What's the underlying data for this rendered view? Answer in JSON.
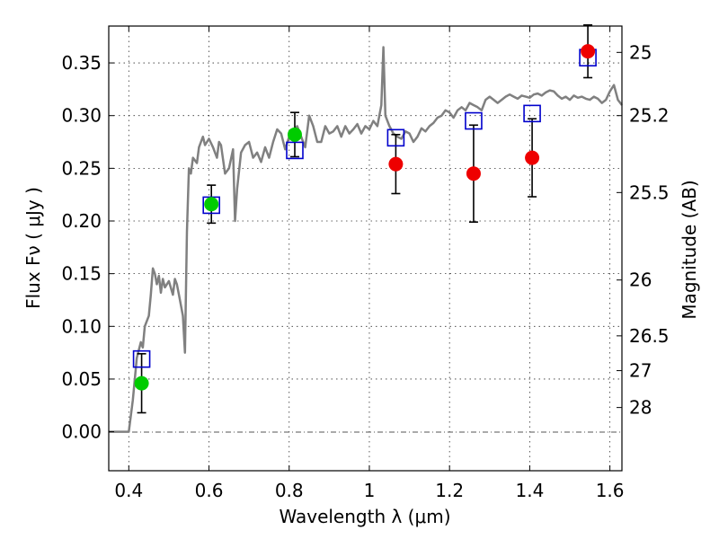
{
  "chart_data": {
    "type": "scatter",
    "xlabel": "Wavelength  λ (μm)",
    "ylabel": "Flux  Fν  ( μJy )",
    "y2label": "Magnitude (AB)",
    "xlim": [
      0.35,
      1.63
    ],
    "ylim": [
      -0.037,
      0.385
    ],
    "grid": true,
    "x_ticks": [
      0.4,
      0.6,
      0.8,
      1.0,
      1.2,
      1.4,
      1.6
    ],
    "x_tick_labels": [
      "0.4",
      "0.6",
      "0.8",
      "1",
      "1.2",
      "1.4",
      "1.6"
    ],
    "y_ticks": [
      0.0,
      0.05,
      0.1,
      0.15,
      0.2,
      0.25,
      0.3,
      0.35
    ],
    "y_tick_labels": [
      "0.00",
      "0.05",
      "0.10",
      "0.15",
      "0.20",
      "0.25",
      "0.30",
      "0.35"
    ],
    "mag_ticks": [
      {
        "label": "25",
        "flux": 0.36
      },
      {
        "label": "25.2",
        "flux": 0.3
      },
      {
        "label": "25.5",
        "flux": 0.227
      },
      {
        "label": "26",
        "flux": 0.144
      },
      {
        "label": "26.5",
        "flux": 0.091
      },
      {
        "label": "27",
        "flux": 0.058
      },
      {
        "label": "28",
        "flux": 0.023
      }
    ],
    "colors": {
      "sed": "#808080",
      "model": "#0000cc",
      "green": "#00cc00",
      "red": "#ee0000",
      "errorbar": "#000000",
      "zeroline": "#555555"
    },
    "series": [
      {
        "marker": "line",
        "points": [
          [
            0.35,
            0.0
          ],
          [
            0.4,
            0.0
          ],
          [
            0.41,
            0.03
          ],
          [
            0.42,
            0.07
          ],
          [
            0.43,
            0.085
          ],
          [
            0.435,
            0.08
          ],
          [
            0.44,
            0.1
          ],
          [
            0.45,
            0.11
          ],
          [
            0.455,
            0.13
          ],
          [
            0.46,
            0.155
          ],
          [
            0.465,
            0.15
          ],
          [
            0.47,
            0.14
          ],
          [
            0.475,
            0.148
          ],
          [
            0.48,
            0.132
          ],
          [
            0.485,
            0.145
          ],
          [
            0.49,
            0.137
          ],
          [
            0.5,
            0.143
          ],
          [
            0.51,
            0.13
          ],
          [
            0.515,
            0.145
          ],
          [
            0.52,
            0.14
          ],
          [
            0.525,
            0.13
          ],
          [
            0.53,
            0.12
          ],
          [
            0.535,
            0.11
          ],
          [
            0.54,
            0.075
          ],
          [
            0.545,
            0.19
          ],
          [
            0.55,
            0.25
          ],
          [
            0.555,
            0.245
          ],
          [
            0.56,
            0.26
          ],
          [
            0.57,
            0.255
          ],
          [
            0.575,
            0.27
          ],
          [
            0.58,
            0.275
          ],
          [
            0.585,
            0.28
          ],
          [
            0.59,
            0.272
          ],
          [
            0.6,
            0.278
          ],
          [
            0.61,
            0.27
          ],
          [
            0.62,
            0.26
          ],
          [
            0.625,
            0.275
          ],
          [
            0.63,
            0.272
          ],
          [
            0.64,
            0.245
          ],
          [
            0.65,
            0.25
          ],
          [
            0.66,
            0.268
          ],
          [
            0.665,
            0.2
          ],
          [
            0.67,
            0.23
          ],
          [
            0.68,
            0.265
          ],
          [
            0.69,
            0.272
          ],
          [
            0.7,
            0.275
          ],
          [
            0.71,
            0.26
          ],
          [
            0.72,
            0.265
          ],
          [
            0.73,
            0.256
          ],
          [
            0.74,
            0.27
          ],
          [
            0.75,
            0.26
          ],
          [
            0.76,
            0.275
          ],
          [
            0.77,
            0.287
          ],
          [
            0.78,
            0.283
          ],
          [
            0.79,
            0.268
          ],
          [
            0.8,
            0.28
          ],
          [
            0.81,
            0.285
          ],
          [
            0.82,
            0.29
          ],
          [
            0.83,
            0.28
          ],
          [
            0.84,
            0.27
          ],
          [
            0.85,
            0.3
          ],
          [
            0.86,
            0.29
          ],
          [
            0.87,
            0.275
          ],
          [
            0.88,
            0.275
          ],
          [
            0.89,
            0.29
          ],
          [
            0.9,
            0.283
          ],
          [
            0.91,
            0.285
          ],
          [
            0.92,
            0.29
          ],
          [
            0.93,
            0.28
          ],
          [
            0.94,
            0.29
          ],
          [
            0.95,
            0.283
          ],
          [
            0.96,
            0.287
          ],
          [
            0.97,
            0.292
          ],
          [
            0.98,
            0.283
          ],
          [
            0.99,
            0.29
          ],
          [
            1.0,
            0.287
          ],
          [
            1.01,
            0.295
          ],
          [
            1.02,
            0.29
          ],
          [
            1.03,
            0.31
          ],
          [
            1.035,
            0.365
          ],
          [
            1.04,
            0.3
          ],
          [
            1.05,
            0.29
          ],
          [
            1.06,
            0.283
          ],
          [
            1.07,
            0.28
          ],
          [
            1.08,
            0.278
          ],
          [
            1.09,
            0.285
          ],
          [
            1.1,
            0.283
          ],
          [
            1.11,
            0.275
          ],
          [
            1.12,
            0.28
          ],
          [
            1.13,
            0.288
          ],
          [
            1.14,
            0.285
          ],
          [
            1.15,
            0.29
          ],
          [
            1.16,
            0.293
          ],
          [
            1.17,
            0.298
          ],
          [
            1.18,
            0.3
          ],
          [
            1.19,
            0.305
          ],
          [
            1.2,
            0.303
          ],
          [
            1.21,
            0.298
          ],
          [
            1.22,
            0.305
          ],
          [
            1.23,
            0.308
          ],
          [
            1.24,
            0.305
          ],
          [
            1.25,
            0.312
          ],
          [
            1.26,
            0.31
          ],
          [
            1.27,
            0.308
          ],
          [
            1.28,
            0.305
          ],
          [
            1.29,
            0.315
          ],
          [
            1.3,
            0.318
          ],
          [
            1.31,
            0.315
          ],
          [
            1.32,
            0.312
          ],
          [
            1.33,
            0.315
          ],
          [
            1.34,
            0.318
          ],
          [
            1.35,
            0.32
          ],
          [
            1.36,
            0.318
          ],
          [
            1.37,
            0.316
          ],
          [
            1.38,
            0.319
          ],
          [
            1.39,
            0.318
          ],
          [
            1.4,
            0.317
          ],
          [
            1.41,
            0.32
          ],
          [
            1.42,
            0.321
          ],
          [
            1.43,
            0.319
          ],
          [
            1.44,
            0.322
          ],
          [
            1.45,
            0.324
          ],
          [
            1.46,
            0.323
          ],
          [
            1.47,
            0.319
          ],
          [
            1.48,
            0.316
          ],
          [
            1.49,
            0.318
          ],
          [
            1.5,
            0.315
          ],
          [
            1.51,
            0.319
          ],
          [
            1.52,
            0.317
          ],
          [
            1.53,
            0.318
          ],
          [
            1.54,
            0.316
          ],
          [
            1.55,
            0.315
          ],
          [
            1.56,
            0.318
          ],
          [
            1.57,
            0.316
          ],
          [
            1.58,
            0.312
          ],
          [
            1.59,
            0.315
          ],
          [
            1.6,
            0.323
          ],
          [
            1.61,
            0.329
          ],
          [
            1.62,
            0.315
          ],
          [
            1.63,
            0.31
          ]
        ]
      },
      {
        "marker": "square",
        "points": [
          {
            "x": 0.432,
            "y": 0.069
          },
          {
            "x": 0.606,
            "y": 0.215
          },
          {
            "x": 0.814,
            "y": 0.267
          },
          {
            "x": 1.066,
            "y": 0.279
          },
          {
            "x": 1.26,
            "y": 0.295
          },
          {
            "x": 1.406,
            "y": 0.302
          },
          {
            "x": 1.545,
            "y": 0.355
          }
        ]
      },
      {
        "marker": "circle",
        "color": "green",
        "points": [
          {
            "x": 0.432,
            "y": 0.046,
            "err": 0.028
          },
          {
            "x": 0.606,
            "y": 0.216,
            "err": 0.018
          },
          {
            "x": 0.814,
            "y": 0.282,
            "err": 0.021
          }
        ]
      },
      {
        "marker": "circle",
        "color": "red",
        "points": [
          {
            "x": 1.066,
            "y": 0.254,
            "err": 0.028
          },
          {
            "x": 1.26,
            "y": 0.245,
            "err": 0.046
          },
          {
            "x": 1.406,
            "y": 0.26,
            "err": 0.037
          },
          {
            "x": 1.545,
            "y": 0.361,
            "err": 0.025
          }
        ]
      }
    ]
  }
}
